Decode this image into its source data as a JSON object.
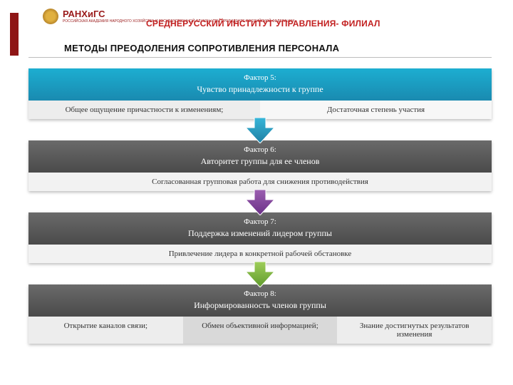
{
  "header": {
    "logo_text": "РАНХиГС",
    "logo_sub": "РОССИЙСКАЯ АКАДЕМИЯ\nНАРОДНОГО ХОЗЯЙСТВА\nИ ГОСУДАРСТВЕННОЙ СЛУЖБЫ\nПРИ ПРЕЗИДЕНТЕ РОССИЙСКОЙ ФЕДЕРАЦИИ",
    "institute": "СРЕДНЕРУССКИЙ ИНСТИТУТ УПРАВЛЕНИЯ- ФИЛИАЛ",
    "accent_color": "#8e1515",
    "title_color": "#c22020"
  },
  "title": "МЕТОДЫ ПРЕОДОЛЕНИЯ СОПРОТИВЛЕНИЯ ПЕРСОНАЛА",
  "factors": [
    {
      "label_line1": "Фактор 5:",
      "label_line2": "Чувство принадлежности к группе",
      "header_gradient": [
        "#1caed1",
        "#1a8ab0"
      ],
      "items": [
        {
          "text": "Общее ощущение причастности к изменениям;",
          "bg": "#ededed"
        },
        {
          "text": "Достаточная степень участия",
          "bg": "#f7f7f7"
        }
      ],
      "arrow_color_top": "#36b6d9",
      "arrow_color_bottom": "#1e7fa3"
    },
    {
      "label_line1": "Фактор 6:",
      "label_line2": "Авторитет группы для ее членов",
      "header_gradient": [
        "#6a6a6a",
        "#4a4a4a"
      ],
      "items": [
        {
          "text": "Согласованная групповая работа для снижения противодействия",
          "bg": "#f2f2f2"
        }
      ],
      "arrow_color_top": "#9b5fb0",
      "arrow_color_bottom": "#6a2f87"
    },
    {
      "label_line1": "Фактор 7:",
      "label_line2": "Поддержка изменений лидером группы",
      "header_gradient": [
        "#6a6a6a",
        "#4a4a4a"
      ],
      "items": [
        {
          "text": "Привлечение лидера в конкретной рабочей обстановке",
          "bg": "#f2f2f2"
        }
      ],
      "arrow_color_top": "#9fce5a",
      "arrow_color_bottom": "#5f9a2c"
    },
    {
      "label_line1": "Фактор 8:",
      "label_line2": "Информированность членов группы",
      "header_gradient": [
        "#6a6a6a",
        "#4a4a4a"
      ],
      "items": [
        {
          "text": "Открытие каналов связи;",
          "bg": "#ededed"
        },
        {
          "text": "Обмен объективной информацией;",
          "bg": "#d9d9d9"
        },
        {
          "text": "Знание достигнутых результатов изменения",
          "bg": "#ededed"
        }
      ],
      "arrow_color_top": null,
      "arrow_color_bottom": null
    }
  ]
}
